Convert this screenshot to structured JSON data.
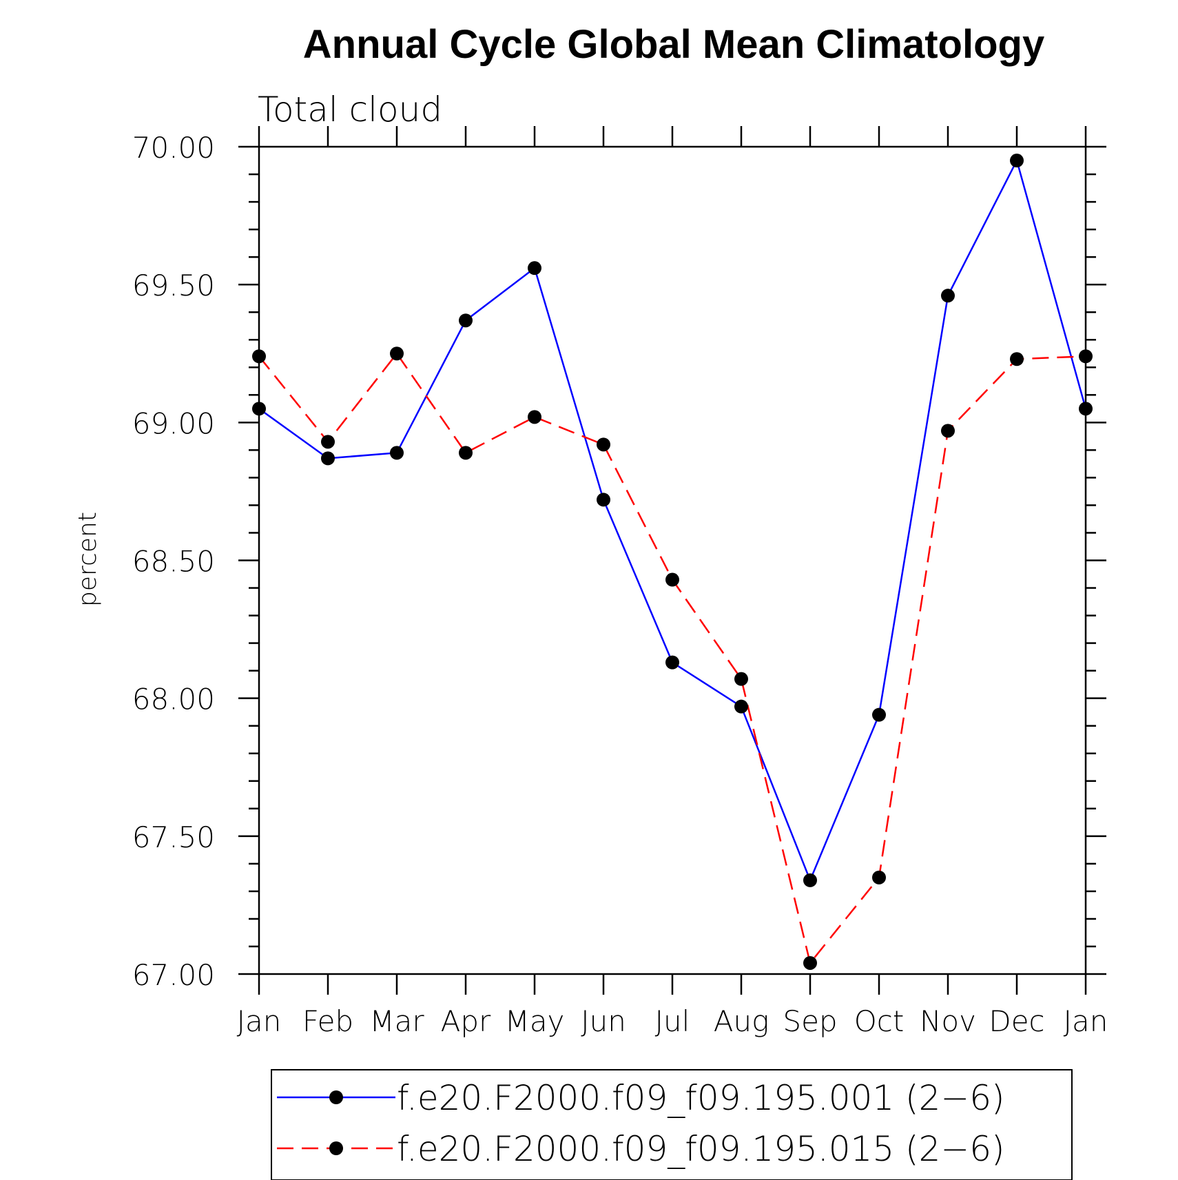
{
  "chart_data": {
    "type": "line",
    "title": "Annual Cycle Global Mean Climatology",
    "subtitle": "Total cloud",
    "ylabel": "percent",
    "xlabel": "",
    "categories": [
      "Jan",
      "Feb",
      "Mar",
      "Apr",
      "May",
      "Jun",
      "Jul",
      "Aug",
      "Sep",
      "Oct",
      "Nov",
      "Dec",
      "Jan"
    ],
    "ylim": [
      67.0,
      70.0
    ],
    "yticks": [
      "67.00",
      "67.50",
      "68.00",
      "68.50",
      "69.00",
      "69.50",
      "70.00"
    ],
    "grid": false,
    "legend_position": "bottom",
    "series": [
      {
        "name": "f.e20.F2000.f09_f09.195.001 (2−6)",
        "color": "#0000ff",
        "line_style": "solid",
        "marker": "filled-circle",
        "values": [
          69.05,
          68.87,
          68.89,
          69.37,
          69.56,
          68.72,
          68.13,
          67.97,
          67.34,
          67.94,
          69.46,
          69.95,
          69.05
        ]
      },
      {
        "name": "f.e20.F2000.f09_f09.195.015 (2−6)",
        "color": "#ff0000",
        "line_style": "dashed",
        "marker": "filled-circle",
        "values": [
          69.24,
          68.93,
          69.25,
          68.89,
          69.02,
          68.92,
          68.43,
          68.07,
          67.04,
          67.35,
          68.97,
          69.23,
          69.24
        ]
      }
    ]
  }
}
